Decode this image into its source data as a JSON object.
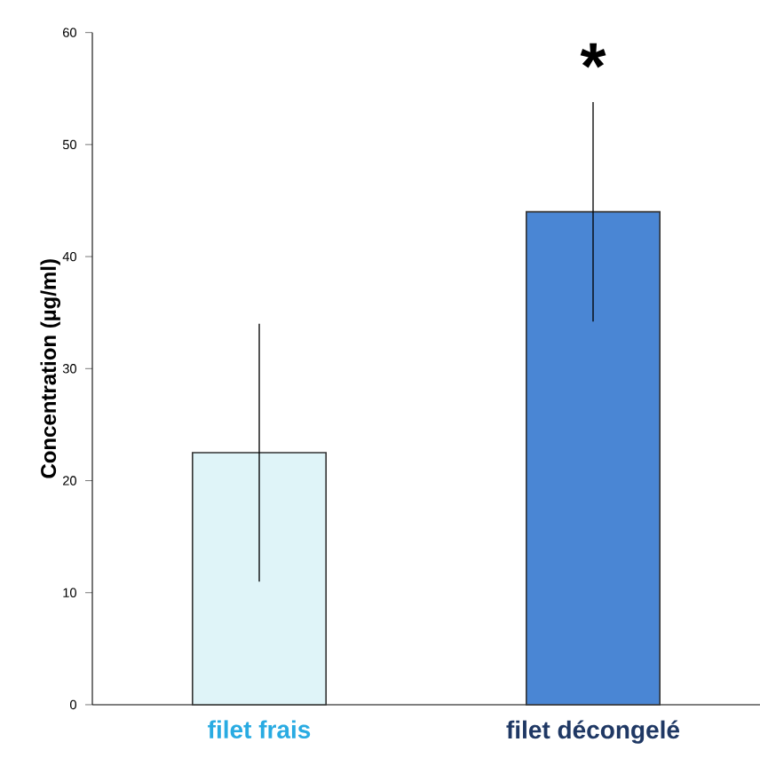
{
  "chart_data": {
    "type": "bar",
    "ylabel": "Concentration (µg/ml)",
    "categories": [
      "filet frais",
      "filet décongelé"
    ],
    "values": [
      22.5,
      44.0
    ],
    "errors": [
      [
        11,
        34
      ],
      [
        34.2,
        53.8
      ]
    ],
    "colors": [
      "#dff4f8",
      "#4a86d4"
    ],
    "ylim": [
      0,
      60
    ],
    "yticks": [
      0,
      10,
      20,
      30,
      40,
      50,
      60
    ],
    "annotations": [
      "*"
    ]
  }
}
